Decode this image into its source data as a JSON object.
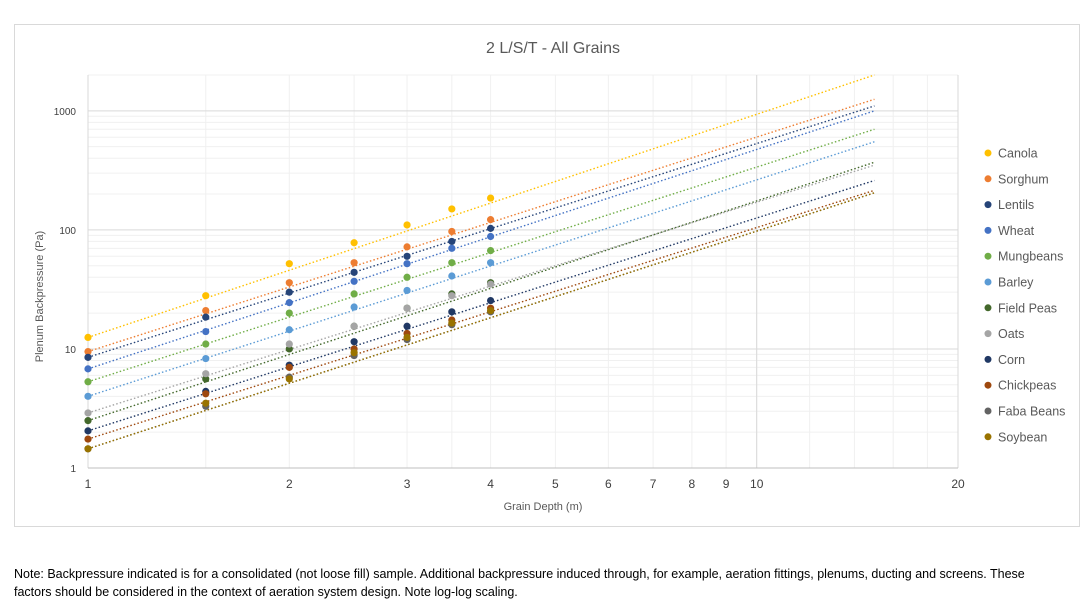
{
  "chart_data": {
    "type": "scatter",
    "title": "2 L/S/T - All Grains",
    "xlabel": "Grain Depth (m)",
    "ylabel": "Plenum Backpressure (Pa)",
    "x_scale": "log",
    "y_scale": "log",
    "xlim": [
      1,
      20
    ],
    "ylim": [
      1,
      2000
    ],
    "x_ticks": [
      1,
      2,
      3,
      4,
      5,
      6,
      7,
      8,
      9,
      10,
      20
    ],
    "x_tick_labels": [
      "1",
      "2",
      "3",
      "4",
      "5",
      "6",
      "7",
      "8",
      "9",
      "10",
      "20"
    ],
    "y_ticks": [
      1,
      10,
      100,
      1000
    ],
    "y_tick_labels": [
      "1",
      "10",
      "100",
      "1000"
    ],
    "grid": true,
    "legend_position": "right",
    "x": [
      1,
      1.5,
      2,
      2.5,
      3,
      3.5,
      4
    ],
    "trendline": "power",
    "trendline_x_range": [
      1,
      15
    ],
    "series": [
      {
        "name": "Canola",
        "color": "#ffc000",
        "values": [
          12.5,
          28,
          52,
          78,
          110,
          150,
          185
        ],
        "trend_end": 2000
      },
      {
        "name": "Sorghum",
        "color": "#ed7d31",
        "values": [
          9.5,
          21,
          36,
          53,
          72,
          97,
          122
        ],
        "trend_end": 1250
      },
      {
        "name": "Lentils",
        "color": "#264478",
        "values": [
          8.5,
          18.5,
          30,
          44,
          60,
          80,
          103
        ],
        "trend_end": 1100
      },
      {
        "name": "Wheat",
        "color": "#4472c4",
        "values": [
          6.8,
          14,
          24.5,
          37,
          52,
          70,
          88
        ],
        "trend_end": 1000
      },
      {
        "name": "Mungbeans",
        "color": "#70ad47",
        "values": [
          5.3,
          11,
          20,
          29,
          40,
          53,
          67
        ],
        "trend_end": 700
      },
      {
        "name": "Barley",
        "color": "#5b9bd5",
        "values": [
          4,
          8.3,
          14.5,
          22.5,
          31,
          41,
          53
        ],
        "trend_end": 550
      },
      {
        "name": "Field Peas",
        "color": "#43682b",
        "values": [
          2.5,
          5.6,
          10,
          15.5,
          22,
          29,
          36
        ],
        "trend_end": 370
      },
      {
        "name": "Oats",
        "color": "#a5a5a5",
        "values": [
          2.9,
          6.2,
          11,
          15.5,
          22,
          28,
          35
        ],
        "trend_end": 350
      },
      {
        "name": "Corn",
        "color": "#203864",
        "values": [
          2.05,
          4.4,
          7.3,
          11.5,
          15.5,
          20.5,
          25.5
        ],
        "trend_end": 260
      },
      {
        "name": "Chickpeas",
        "color": "#9e480e",
        "values": [
          1.75,
          4.2,
          7,
          10,
          13.5,
          17.5,
          22
        ],
        "trend_end": 215
      },
      {
        "name": "Faba Beans",
        "color": "#636363",
        "values": [
          1.45,
          3.3,
          5.8,
          8.8,
          12,
          16,
          20.5
        ],
        "trend_end": 205
      },
      {
        "name": "Soybean",
        "color": "#997300",
        "values": [
          1.45,
          3.5,
          5.6,
          9.3,
          12.5,
          16.5,
          21
        ],
        "trend_end": 205
      }
    ]
  },
  "note": "Note: Backpressure indicated is for a consolidated (not loose fill) sample. Additional backpressure induced through, for example, aeration fittings, plenums, ducting and screens. These factors should be considered in the context of aeration system design. Note log-log scaling."
}
